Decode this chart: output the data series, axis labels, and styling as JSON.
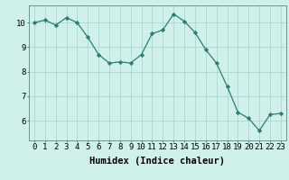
{
  "x": [
    0,
    1,
    2,
    3,
    4,
    5,
    6,
    7,
    8,
    9,
    10,
    11,
    12,
    13,
    14,
    15,
    16,
    17,
    18,
    19,
    20,
    21,
    22,
    23
  ],
  "y": [
    10.0,
    10.1,
    9.9,
    10.2,
    10.0,
    9.4,
    8.7,
    8.35,
    8.4,
    8.35,
    8.7,
    9.55,
    9.7,
    10.35,
    10.05,
    9.6,
    8.9,
    8.35,
    7.4,
    6.35,
    6.1,
    5.6,
    6.25,
    6.3
  ],
  "line_color": "#2e7d6e",
  "marker": "D",
  "marker_size": 2.2,
  "bg_color": "#cff0eb",
  "grid_color": "#aad8d0",
  "xlabel": "Humidex (Indice chaleur)",
  "ylim": [
    5.2,
    10.7
  ],
  "yticks": [
    6,
    7,
    8,
    9,
    10
  ],
  "xlim": [
    -0.5,
    23.5
  ],
  "xlabel_fontsize": 7.5,
  "tick_fontsize": 6.5
}
